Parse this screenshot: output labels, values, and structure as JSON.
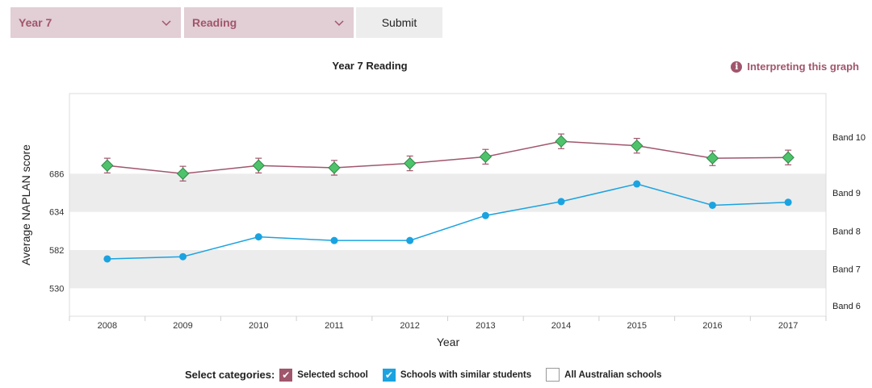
{
  "controls": {
    "year_select": "Year 7",
    "subject_select": "Reading",
    "submit_label": "Submit",
    "interpret_label": "Interpreting this graph",
    "info_glyph": "i"
  },
  "legend": {
    "title": "Select categories:",
    "items": [
      {
        "label": "Selected school",
        "checked": true,
        "color": "#a0566c"
      },
      {
        "label": "Schools with similar students",
        "checked": true,
        "color": "#1aa3e0"
      },
      {
        "label": "All Australian schools",
        "checked": false,
        "color": "#ffffff"
      }
    ]
  },
  "chart_data": {
    "type": "line",
    "title": "Year 7 Reading",
    "xlabel": "Year",
    "ylabel": "Average NAPLAN score",
    "categories": [
      "2008",
      "2009",
      "2010",
      "2011",
      "2012",
      "2013",
      "2014",
      "2015",
      "2016",
      "2017"
    ],
    "yticks": [
      530,
      582,
      634,
      686
    ],
    "ylim": [
      492,
      795
    ],
    "bands": [
      {
        "label": "Band 6",
        "from": 478,
        "to": 530,
        "shaded": false
      },
      {
        "label": "Band 7",
        "from": 530,
        "to": 582,
        "shaded": true
      },
      {
        "label": "Band 8",
        "from": 582,
        "to": 634,
        "shaded": false
      },
      {
        "label": "Band 9",
        "from": 634,
        "to": 686,
        "shaded": true
      },
      {
        "label": "Band 10",
        "from": 686,
        "to": 738,
        "shaded": false
      }
    ],
    "series": [
      {
        "name": "Selected school",
        "color": "#a0566c",
        "marker": "diamond",
        "marker_color": "#4fc36b",
        "values": [
          697,
          686,
          697,
          694,
          700,
          709,
          730,
          724,
          707,
          708
        ],
        "error": [
          10,
          10,
          10,
          10,
          10,
          10,
          10,
          10,
          10,
          10
        ]
      },
      {
        "name": "Schools with similar students",
        "color": "#1aa3e0",
        "marker": "circle",
        "values": [
          570,
          573,
          600,
          595,
          595,
          629,
          648,
          672,
          643,
          647
        ]
      }
    ]
  }
}
